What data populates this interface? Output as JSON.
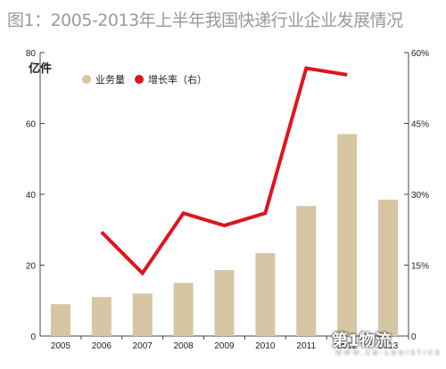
{
  "title": "图1：2005-2013年上半年我国快递行业企业发展情况",
  "unit_label": "亿件",
  "watermark": "第1物流",
  "watermark_sub": "WWW.CN-LOGISTICS",
  "colors": {
    "bar": "#d7c6a3",
    "line": "#e0141e",
    "axis": "#444444",
    "title": "#9a9a9a"
  },
  "chart_data": {
    "type": "bar",
    "categories": [
      "2005",
      "2006",
      "2007",
      "2008",
      "2009",
      "2010",
      "2011",
      "2012",
      "2013"
    ],
    "series": [
      {
        "name": "业务量",
        "type": "bar",
        "axis": "left",
        "values": [
          9,
          11,
          12,
          15,
          18.6,
          23.4,
          36.7,
          57,
          38.5
        ]
      },
      {
        "name": "增长率（右）",
        "type": "line",
        "axis": "right",
        "unit": "%",
        "values": [
          null,
          22.0,
          13.3,
          26.0,
          23.4,
          26.0,
          56.7,
          55.3,
          null
        ]
      }
    ],
    "left_axis": {
      "ylim": [
        0,
        80
      ],
      "ticks": [
        "0",
        "20",
        "40",
        "60",
        "80"
      ]
    },
    "right_axis": {
      "ylim": [
        0,
        60
      ],
      "ticks": [
        "0",
        "15%",
        "30%",
        "45%",
        "60%"
      ]
    },
    "legend": "top-left"
  }
}
